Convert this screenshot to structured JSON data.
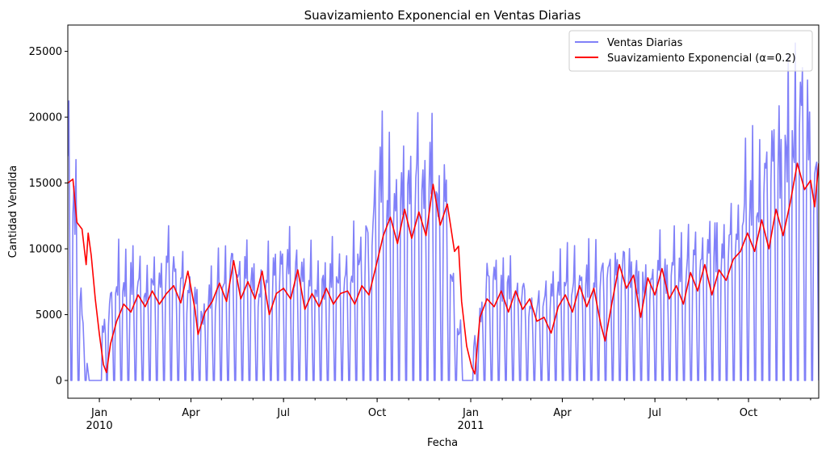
{
  "chart_data": {
    "type": "line",
    "title": "Suavizamiento Exponencial en Ventas Diarias",
    "xlabel": "Fecha",
    "ylabel": "Cantidad Vendida",
    "x_range": [
      "2009-12-01",
      "2011-12-09"
    ],
    "ylim": [
      -1350,
      27000
    ],
    "grid": false,
    "legend_position": "upper right",
    "x_ticks": [
      {
        "date": "2010-01-01",
        "label": "Jan",
        "sublabel": "2010"
      },
      {
        "date": "2010-04-01",
        "label": "Apr",
        "sublabel": ""
      },
      {
        "date": "2010-07-01",
        "label": "Jul",
        "sublabel": ""
      },
      {
        "date": "2010-10-01",
        "label": "Oct",
        "sublabel": ""
      },
      {
        "date": "2011-01-01",
        "label": "Jan",
        "sublabel": "2011"
      },
      {
        "date": "2011-04-01",
        "label": "Apr",
        "sublabel": ""
      },
      {
        "date": "2011-07-01",
        "label": "Jul",
        "sublabel": ""
      },
      {
        "date": "2011-10-01",
        "label": "Oct",
        "sublabel": ""
      }
    ],
    "y_ticks": [
      0,
      5000,
      10000,
      15000,
      20000,
      25000
    ],
    "smoothing_alpha": 0.2,
    "series": [
      {
        "name": "Ventas Diarias",
        "color": "#8080f8",
        "weekly_level": [
          [
            "2009-12-01",
            14500
          ],
          [
            "2009-12-08",
            11000
          ],
          [
            "2009-12-15",
            4000
          ],
          [
            "2009-12-22",
            0
          ],
          [
            "2010-01-05",
            3500
          ],
          [
            "2010-01-19",
            6200
          ],
          [
            "2010-02-15",
            6000
          ],
          [
            "2010-03-15",
            7000
          ],
          [
            "2010-04-12",
            4200
          ],
          [
            "2010-05-10",
            7500
          ],
          [
            "2010-06-07",
            6000
          ],
          [
            "2010-07-05",
            6800
          ],
          [
            "2010-08-02",
            6000
          ],
          [
            "2010-08-30",
            6800
          ],
          [
            "2010-09-20",
            8500
          ],
          [
            "2010-10-04",
            12000
          ],
          [
            "2010-10-25",
            11500
          ],
          [
            "2010-11-15",
            13000
          ],
          [
            "2010-12-06",
            11000
          ],
          [
            "2010-12-20",
            3000
          ],
          [
            "2011-01-04",
            2500
          ],
          [
            "2011-01-17",
            6000
          ],
          [
            "2011-02-14",
            6000
          ],
          [
            "2011-03-07",
            4500
          ],
          [
            "2011-04-04",
            6500
          ],
          [
            "2011-05-02",
            6200
          ],
          [
            "2011-05-23",
            7500
          ],
          [
            "2011-06-20",
            6500
          ],
          [
            "2011-07-18",
            6800
          ],
          [
            "2011-08-15",
            7000
          ],
          [
            "2011-09-05",
            8500
          ],
          [
            "2011-09-26",
            11000
          ],
          [
            "2011-10-17",
            12000
          ],
          [
            "2011-11-07",
            15000
          ],
          [
            "2011-11-28",
            16500
          ],
          [
            "2011-12-09",
            12000
          ]
        ],
        "note_zero_days": "saturday"
      },
      {
        "name": "Suavizamiento Exponencial (α=0.2)",
        "color": "#ff0000",
        "values": [
          [
            "2009-12-01",
            15000
          ],
          [
            "2009-12-06",
            15300
          ],
          [
            "2009-12-10",
            12000
          ],
          [
            "2009-12-15",
            11500
          ],
          [
            "2009-12-19",
            8800
          ],
          [
            "2009-12-21",
            11200
          ],
          [
            "2009-12-24",
            9500
          ],
          [
            "2009-12-28",
            6200
          ],
          [
            "2010-01-01",
            3500
          ],
          [
            "2010-01-05",
            1200
          ],
          [
            "2010-01-08",
            600
          ],
          [
            "2010-01-12",
            2800
          ],
          [
            "2010-01-18",
            4500
          ],
          [
            "2010-01-25",
            5800
          ],
          [
            "2010-02-01",
            5200
          ],
          [
            "2010-02-08",
            6500
          ],
          [
            "2010-02-15",
            5600
          ],
          [
            "2010-02-22",
            6800
          ],
          [
            "2010-03-01",
            5800
          ],
          [
            "2010-03-08",
            6600
          ],
          [
            "2010-03-15",
            7200
          ],
          [
            "2010-03-22",
            5900
          ],
          [
            "2010-03-29",
            8300
          ],
          [
            "2010-04-05",
            5400
          ],
          [
            "2010-04-08",
            3500
          ],
          [
            "2010-04-15",
            5200
          ],
          [
            "2010-04-22",
            6000
          ],
          [
            "2010-04-29",
            7400
          ],
          [
            "2010-05-06",
            6000
          ],
          [
            "2010-05-13",
            9100
          ],
          [
            "2010-05-20",
            6200
          ],
          [
            "2010-05-27",
            7500
          ],
          [
            "2010-06-03",
            6200
          ],
          [
            "2010-06-10",
            8300
          ],
          [
            "2010-06-17",
            5000
          ],
          [
            "2010-06-24",
            6600
          ],
          [
            "2010-07-01",
            7000
          ],
          [
            "2010-07-08",
            6200
          ],
          [
            "2010-07-15",
            8400
          ],
          [
            "2010-07-22",
            5400
          ],
          [
            "2010-07-29",
            6600
          ],
          [
            "2010-08-05",
            5600
          ],
          [
            "2010-08-12",
            7000
          ],
          [
            "2010-08-19",
            5800
          ],
          [
            "2010-08-26",
            6600
          ],
          [
            "2010-09-02",
            6800
          ],
          [
            "2010-09-09",
            5800
          ],
          [
            "2010-09-16",
            7200
          ],
          [
            "2010-09-23",
            6500
          ],
          [
            "2010-09-30",
            8700
          ],
          [
            "2010-10-07",
            11000
          ],
          [
            "2010-10-14",
            12400
          ],
          [
            "2010-10-21",
            10400
          ],
          [
            "2010-10-28",
            13000
          ],
          [
            "2010-11-04",
            10800
          ],
          [
            "2010-11-11",
            12800
          ],
          [
            "2010-11-18",
            11000
          ],
          [
            "2010-11-25",
            14900
          ],
          [
            "2010-12-02",
            11800
          ],
          [
            "2010-12-09",
            13400
          ],
          [
            "2010-12-16",
            9800
          ],
          [
            "2010-12-20",
            10200
          ],
          [
            "2010-12-23",
            6000
          ],
          [
            "2010-12-28",
            2600
          ],
          [
            "2011-01-02",
            1000
          ],
          [
            "2011-01-05",
            500
          ],
          [
            "2011-01-10",
            4800
          ],
          [
            "2011-01-17",
            6200
          ],
          [
            "2011-01-24",
            5600
          ],
          [
            "2011-01-31",
            6800
          ],
          [
            "2011-02-07",
            5200
          ],
          [
            "2011-02-14",
            6800
          ],
          [
            "2011-02-21",
            5400
          ],
          [
            "2011-02-28",
            6200
          ],
          [
            "2011-03-07",
            4500
          ],
          [
            "2011-03-14",
            4800
          ],
          [
            "2011-03-21",
            3600
          ],
          [
            "2011-03-28",
            5600
          ],
          [
            "2011-04-04",
            6500
          ],
          [
            "2011-04-11",
            5200
          ],
          [
            "2011-04-18",
            7200
          ],
          [
            "2011-04-25",
            5600
          ],
          [
            "2011-05-02",
            7000
          ],
          [
            "2011-05-09",
            4200
          ],
          [
            "2011-05-13",
            3000
          ],
          [
            "2011-05-20",
            6000
          ],
          [
            "2011-05-27",
            8800
          ],
          [
            "2011-06-03",
            7000
          ],
          [
            "2011-06-10",
            8000
          ],
          [
            "2011-06-17",
            4800
          ],
          [
            "2011-06-24",
            7800
          ],
          [
            "2011-07-01",
            6500
          ],
          [
            "2011-07-08",
            8500
          ],
          [
            "2011-07-15",
            6200
          ],
          [
            "2011-07-22",
            7200
          ],
          [
            "2011-07-29",
            5800
          ],
          [
            "2011-08-05",
            8200
          ],
          [
            "2011-08-12",
            6800
          ],
          [
            "2011-08-19",
            8800
          ],
          [
            "2011-08-26",
            6500
          ],
          [
            "2011-09-02",
            8400
          ],
          [
            "2011-09-09",
            7600
          ],
          [
            "2011-09-16",
            9200
          ],
          [
            "2011-09-23",
            9800
          ],
          [
            "2011-09-30",
            11200
          ],
          [
            "2011-10-07",
            9800
          ],
          [
            "2011-10-14",
            12200
          ],
          [
            "2011-10-21",
            10000
          ],
          [
            "2011-10-28",
            13000
          ],
          [
            "2011-11-04",
            11000
          ],
          [
            "2011-11-11",
            13500
          ],
          [
            "2011-11-18",
            16500
          ],
          [
            "2011-11-25",
            14500
          ],
          [
            "2011-12-01",
            15200
          ],
          [
            "2011-12-05",
            13200
          ],
          [
            "2011-12-09",
            16500
          ]
        ]
      }
    ]
  }
}
